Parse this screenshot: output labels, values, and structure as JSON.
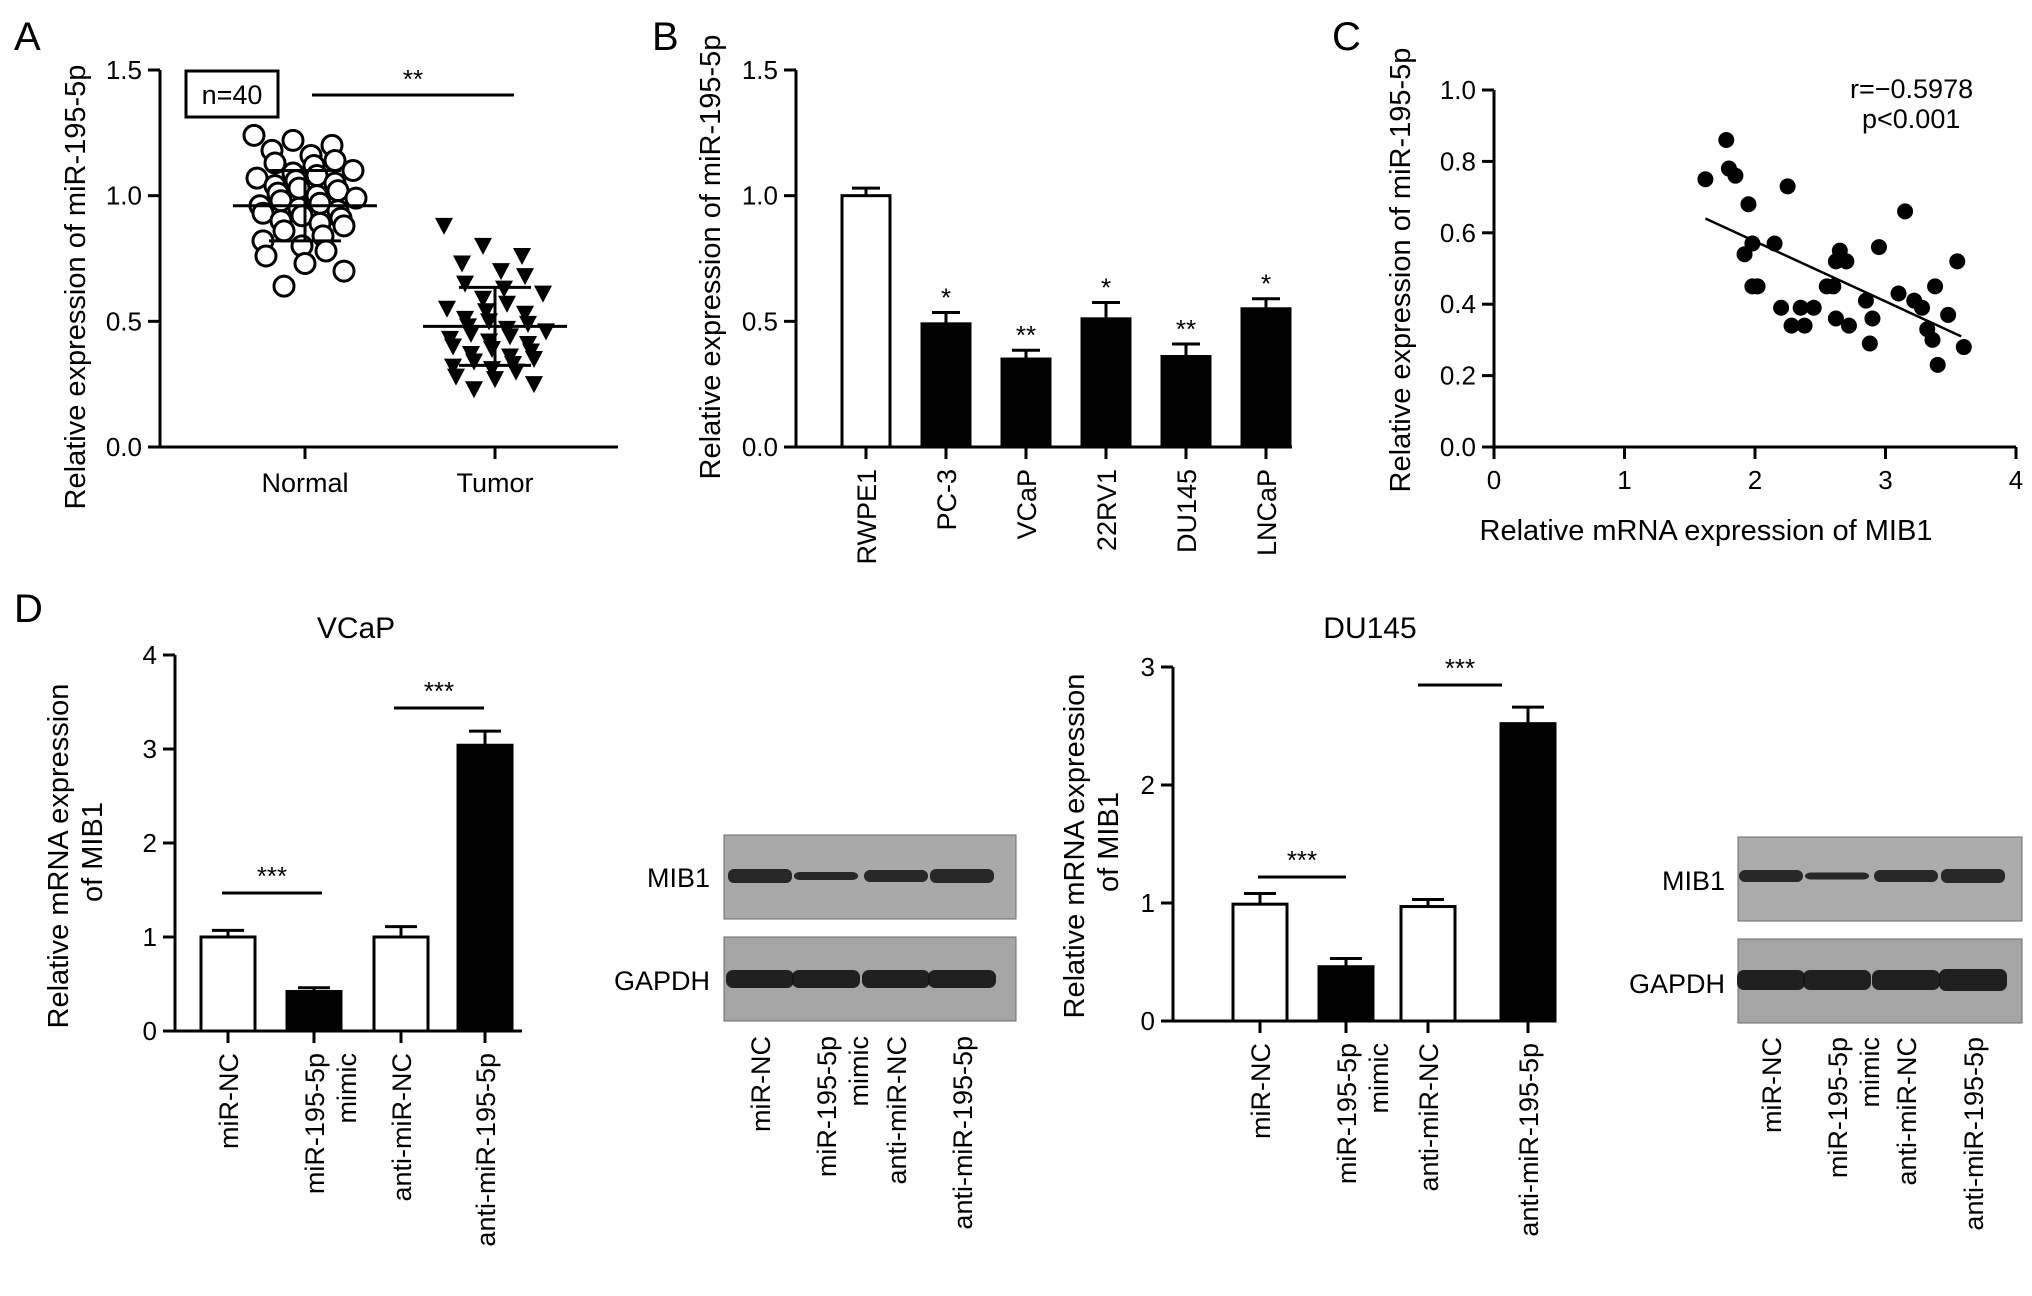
{
  "panels": {
    "A": "A",
    "B": "B",
    "C": "C",
    "D": "D"
  },
  "chart_data": [
    {
      "id": "A",
      "type": "scatter",
      "ylabel": "Relative expression of miR-195-5p",
      "categories": [
        "Normal",
        "Tumor"
      ],
      "ylim": [
        0,
        1.5
      ],
      "yticks": [
        "0.0",
        "0.5",
        "1.0",
        "1.5"
      ],
      "annotation": "n=40",
      "significance": "**",
      "means": [
        0.96,
        0.48
      ],
      "sd": [
        0.14,
        0.155
      ],
      "series": [
        {
          "name": "Normal",
          "values": [
            1.24,
            1.22,
            1.2,
            1.18,
            1.16,
            1.14,
            1.13,
            1.12,
            1.1,
            1.09,
            1.08,
            1.07,
            1.06,
            1.05,
            1.04,
            1.03,
            1.02,
            1.01,
            1.0,
            0.99,
            0.98,
            0.97,
            0.96,
            0.95,
            0.94,
            0.93,
            0.92,
            0.91,
            0.9,
            0.89,
            0.88,
            0.86,
            0.84,
            0.82,
            0.8,
            0.78,
            0.76,
            0.73,
            0.7,
            0.64
          ]
        },
        {
          "name": "Tumor",
          "values": [
            0.88,
            0.8,
            0.76,
            0.73,
            0.7,
            0.68,
            0.65,
            0.63,
            0.61,
            0.59,
            0.57,
            0.55,
            0.54,
            0.53,
            0.51,
            0.5,
            0.49,
            0.48,
            0.47,
            0.46,
            0.45,
            0.44,
            0.43,
            0.42,
            0.41,
            0.4,
            0.39,
            0.38,
            0.37,
            0.36,
            0.35,
            0.34,
            0.33,
            0.32,
            0.31,
            0.3,
            0.28,
            0.27,
            0.25,
            0.23
          ]
        }
      ]
    },
    {
      "id": "B",
      "type": "bar",
      "ylabel": "Relative expression of miR-195-5p",
      "categories": [
        "RWPE1",
        "PC-3",
        "VCaP",
        "22RV1",
        "DU145",
        "LNCaP"
      ],
      "values": [
        1.0,
        0.49,
        0.35,
        0.51,
        0.36,
        0.55
      ],
      "errors": [
        0.03,
        0.045,
        0.035,
        0.065,
        0.05,
        0.04
      ],
      "fills": [
        "#ffffff",
        "#000000",
        "#000000",
        "#000000",
        "#000000",
        "#000000"
      ],
      "significance": [
        "",
        "*",
        "**",
        "*",
        "**",
        "*"
      ],
      "ylim": [
        0,
        1.5
      ],
      "yticks": [
        "0.0",
        "0.5",
        "1.0",
        "1.5"
      ]
    },
    {
      "id": "C",
      "type": "scatter",
      "ylabel": "Relative expression of miR-195-5p",
      "xlabel": "Relative mRNA expression of MIB1",
      "xlim": [
        0,
        4
      ],
      "ylim": [
        0,
        1.0
      ],
      "xticks": [
        "0",
        "1",
        "2",
        "3",
        "4"
      ],
      "yticks": [
        "0.0",
        "0.2",
        "0.4",
        "0.6",
        "0.8",
        "1.0"
      ],
      "annotation_r": "r=−0.5978",
      "annotation_p": "p<0.001",
      "fit": {
        "x": [
          1.62,
          3.58
        ],
        "y": [
          0.64,
          0.31
        ]
      },
      "points": [
        [
          1.62,
          0.75
        ],
        [
          1.78,
          0.86
        ],
        [
          1.8,
          0.78
        ],
        [
          1.85,
          0.76
        ],
        [
          1.92,
          0.54
        ],
        [
          1.95,
          0.68
        ],
        [
          1.98,
          0.57
        ],
        [
          1.98,
          0.45
        ],
        [
          2.02,
          0.45
        ],
        [
          2.15,
          0.57
        ],
        [
          2.2,
          0.39
        ],
        [
          2.25,
          0.73
        ],
        [
          2.28,
          0.34
        ],
        [
          2.35,
          0.39
        ],
        [
          2.38,
          0.34
        ],
        [
          2.45,
          0.39
        ],
        [
          2.55,
          0.45
        ],
        [
          2.6,
          0.45
        ],
        [
          2.62,
          0.52
        ],
        [
          2.62,
          0.36
        ],
        [
          2.65,
          0.55
        ],
        [
          2.7,
          0.52
        ],
        [
          2.72,
          0.34
        ],
        [
          2.85,
          0.41
        ],
        [
          2.88,
          0.29
        ],
        [
          2.9,
          0.36
        ],
        [
          2.95,
          0.56
        ],
        [
          3.1,
          0.43
        ],
        [
          3.15,
          0.66
        ],
        [
          3.22,
          0.41
        ],
        [
          3.28,
          0.39
        ],
        [
          3.32,
          0.33
        ],
        [
          3.36,
          0.3
        ],
        [
          3.38,
          0.45
        ],
        [
          3.4,
          0.23
        ],
        [
          3.48,
          0.37
        ],
        [
          3.55,
          0.52
        ],
        [
          3.6,
          0.28
        ]
      ]
    },
    {
      "id": "D-VCaP",
      "type": "bar",
      "title": "VCaP",
      "ylabel": "Relative mRNA expression of MIB1",
      "categories": [
        "miR-NC",
        "miR-195-5p mimic",
        "anti-miR-NC",
        "anti-miR-195-5p"
      ],
      "values": [
        1.0,
        0.42,
        1.0,
        3.04
      ],
      "errors": [
        0.07,
        0.04,
        0.11,
        0.15
      ],
      "fills": [
        "#ffffff",
        "#000000",
        "#ffffff",
        "#000000"
      ],
      "ylim": [
        0,
        4
      ],
      "yticks": [
        "0",
        "1",
        "2",
        "3",
        "4"
      ],
      "significance": [
        "***",
        "***"
      ]
    },
    {
      "id": "D-DU145",
      "type": "bar",
      "title": "DU145",
      "ylabel": "Relative mRNA expression of MIB1",
      "categories": [
        "miR-NC",
        "miR-195-5p mimic",
        "anti-miR-NC",
        "anti-miR-195-5p"
      ],
      "values": [
        0.99,
        0.46,
        0.97,
        2.52
      ],
      "errors": [
        0.09,
        0.07,
        0.06,
        0.14
      ],
      "fills": [
        "#ffffff",
        "#000000",
        "#ffffff",
        "#000000"
      ],
      "ylim": [
        0,
        3
      ],
      "yticks": [
        "0",
        "1",
        "2",
        "3"
      ],
      "significance": [
        "***",
        "***"
      ]
    }
  ],
  "blots": {
    "rows": [
      "MIB1",
      "GAPDH"
    ],
    "lanes": [
      "miR-NC",
      "miR-195-5p mimic",
      "anti-miR-NC",
      "anti-miR-195-5p"
    ]
  }
}
